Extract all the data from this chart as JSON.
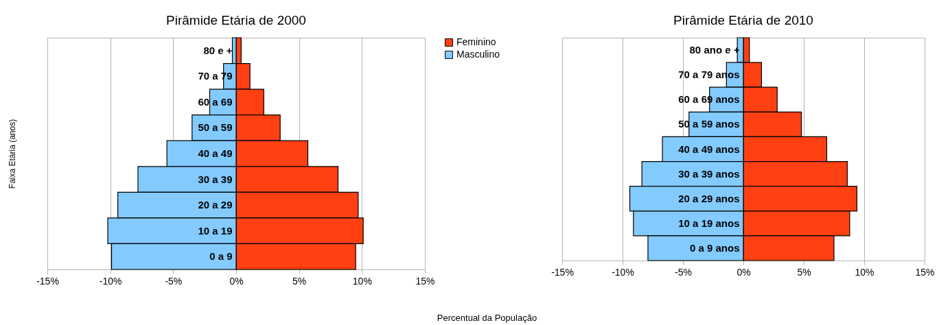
{
  "chart_data": [
    {
      "type": "bar",
      "orientation": "horizontal",
      "stacked": true,
      "title": "Pirâmide Etária de 2000",
      "xlabel": "Percentual da População",
      "ylabel": "Faixa Etária (anos)",
      "categories": [
        "80 e +",
        "70 a 79",
        "60 a 69",
        "50 a 59",
        "40 a 49",
        "30 a 39",
        "20 a 29",
        "10 a 19",
        "0 a 9"
      ],
      "series": [
        {
          "name": "Feminino",
          "color": "#ff4013",
          "values": [
            0.4,
            1.1,
            2.2,
            3.5,
            5.7,
            8.1,
            9.7,
            10.1,
            9.5
          ]
        },
        {
          "name": "Masculino",
          "color": "#83caff",
          "values": [
            -0.3,
            -1.0,
            -2.1,
            -3.5,
            -5.5,
            -7.8,
            -9.4,
            -10.2,
            -9.9
          ]
        }
      ],
      "xlim": [
        -15,
        15
      ],
      "xticks": [
        {
          "value": -15,
          "label": "-15%"
        },
        {
          "value": -10,
          "label": "-10%"
        },
        {
          "value": -5,
          "label": "-5%"
        },
        {
          "value": 0,
          "label": "0%"
        },
        {
          "value": 5,
          "label": "5%"
        },
        {
          "value": 10,
          "label": "10%"
        },
        {
          "value": 15,
          "label": "15%"
        }
      ],
      "grid": "x",
      "legend": "right"
    },
    {
      "type": "bar",
      "orientation": "horizontal",
      "stacked": true,
      "title": "Pirâmide Etária de 2010",
      "categories": [
        "80 ano e +",
        "70 a 79 anos",
        "60 a 69 anos",
        "50 a 59 anos",
        "40 a 49 anos",
        "30 a 39 anos",
        "20 a 29 anos",
        "10 a 19 anos",
        "0 a 9 anos"
      ],
      "series": [
        {
          "color": "#ff4013",
          "values": [
            0.5,
            1.5,
            2.8,
            4.8,
            6.9,
            8.6,
            9.4,
            8.8,
            7.5
          ]
        },
        {
          "color": "#83caff",
          "values": [
            -0.5,
            -1.4,
            -2.8,
            -4.5,
            -6.7,
            -8.4,
            -9.4,
            -9.1,
            -7.9
          ]
        }
      ],
      "xlim": [
        -15,
        15
      ],
      "xticks": [
        {
          "value": -15,
          "label": "-15%"
        },
        {
          "value": -10,
          "label": "-10%"
        },
        {
          "value": -5,
          "label": "-5%"
        },
        {
          "value": 0,
          "label": "0%"
        },
        {
          "value": 5,
          "label": "5%"
        },
        {
          "value": 10,
          "label": "10%"
        },
        {
          "value": 15,
          "label": "15%"
        }
      ],
      "grid": "x"
    }
  ]
}
